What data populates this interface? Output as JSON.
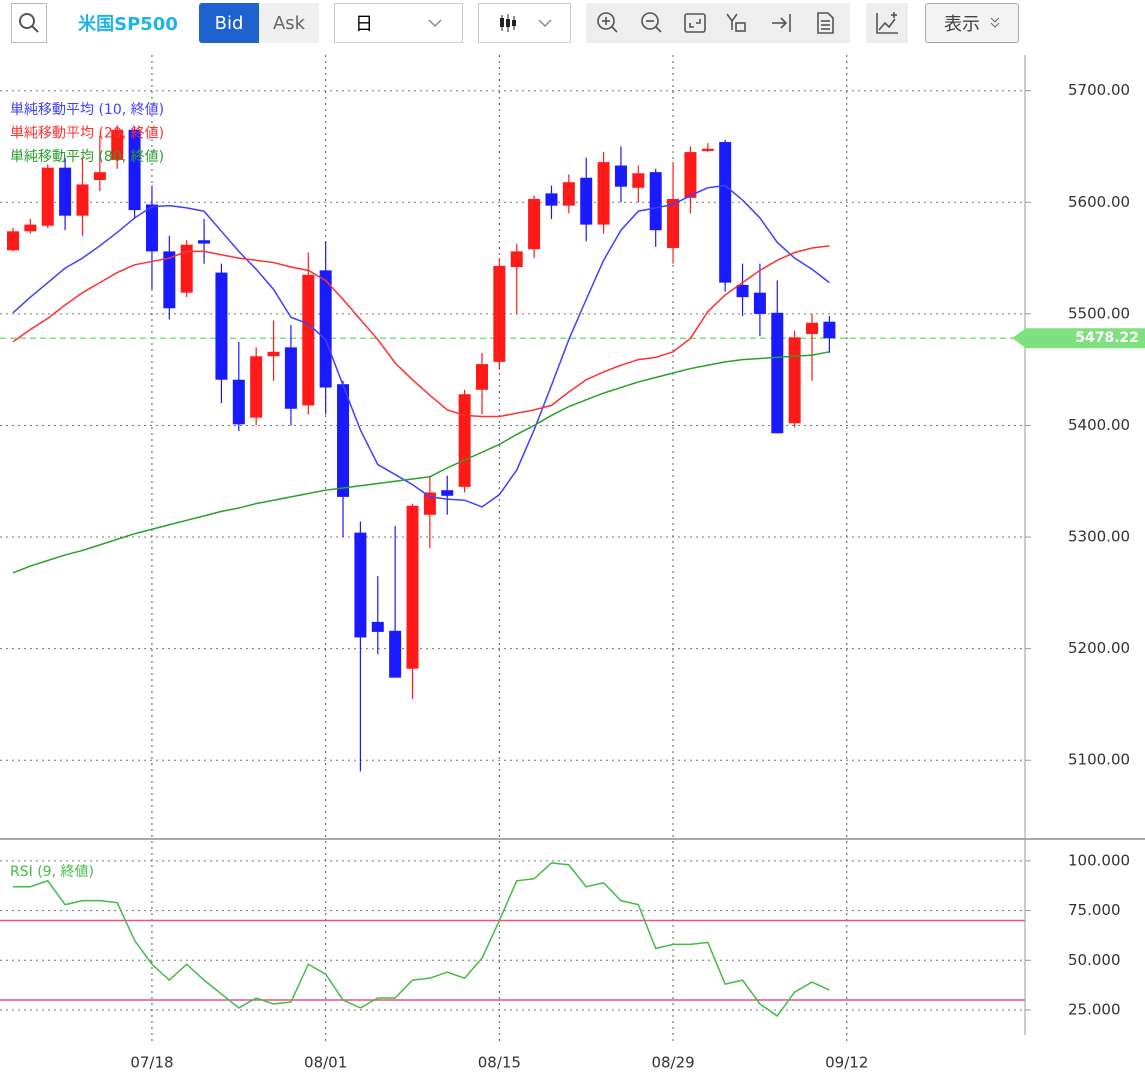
{
  "toolbar": {
    "symbol": "米国SP500",
    "bid": "Bid",
    "ask": "Ask",
    "period": "日",
    "display": "表示"
  },
  "chart_data": [
    {
      "type": "candlestick",
      "categories": [
        null,
        null,
        null,
        null,
        null,
        null,
        null,
        null,
        "07/18",
        null,
        null,
        null,
        null,
        null,
        null,
        null,
        null,
        null,
        "08/01",
        null,
        null,
        null,
        null,
        null,
        null,
        null,
        null,
        null,
        "08/15",
        null,
        null,
        null,
        null,
        null,
        null,
        null,
        null,
        null,
        "08/29",
        null,
        null,
        null,
        null,
        null,
        null,
        null,
        null,
        null,
        "09/12"
      ],
      "open": [
        5557,
        5574,
        5579,
        5631,
        5588,
        5620,
        5638,
        5665,
        5598,
        5556,
        5519,
        5566,
        5537,
        5441,
        5407,
        5462,
        5470,
        5418,
        5539,
        5437,
        5304,
        5224,
        5216,
        5182,
        5320,
        5342,
        5345,
        5432,
        5457,
        5542,
        5558,
        5608,
        5597,
        5622,
        5580,
        5633,
        5613,
        5627,
        5559,
        5604,
        5646,
        5654,
        5526,
        5519,
        5501,
        5402,
        5482,
        5493,
        null
      ],
      "high": [
        5577,
        5585,
        5634,
        5640,
        5640,
        5660,
        5669,
        5668,
        5615,
        5570,
        5566,
        5585,
        5545,
        5475,
        5470,
        5494,
        5490,
        5555,
        5565,
        5440,
        5314,
        5265,
        5310,
        5330,
        5355,
        5355,
        5432,
        5465,
        5550,
        5563,
        5606,
        5615,
        5625,
        5640,
        5645,
        5650,
        5633,
        5630,
        5636,
        5650,
        5653,
        5656,
        5545,
        5545,
        5530,
        5485,
        5500,
        5498,
        null
      ],
      "low": [
        5556,
        5572,
        5577,
        5575,
        5570,
        5610,
        5630,
        5585,
        5522,
        5495,
        5515,
        5545,
        5420,
        5395,
        5400,
        5440,
        5400,
        5410,
        5410,
        5300,
        5090,
        5195,
        5174,
        5155,
        5290,
        5320,
        5340,
        5410,
        5450,
        5500,
        5550,
        5585,
        5590,
        5565,
        5572,
        5600,
        5600,
        5560,
        5545,
        5590,
        5645,
        5520,
        5498,
        5480,
        5393,
        5398,
        5440,
        5465,
        null
      ],
      "close": [
        5574,
        5580,
        5631,
        5588,
        5616,
        5627,
        5665,
        5593,
        5556,
        5505,
        5562,
        5563,
        5441,
        5401,
        5462,
        5466,
        5415,
        5535,
        5434,
        5336,
        5210,
        5215,
        5174,
        5328,
        5340,
        5337,
        5428,
        5455,
        5543,
        5556,
        5603,
        5597,
        5618,
        5580,
        5636,
        5614,
        5626,
        5575,
        5603,
        5645,
        5648,
        5528,
        5515,
        5500,
        5393,
        5479,
        5492,
        5478.22,
        null
      ],
      "up_color": "#ff1a1a",
      "down_color": "#1a1aff",
      "series": [
        {
          "name": "単純移動平均 (10, 終値)",
          "color": "#4040ff",
          "values": [
            5501,
            5515,
            5528,
            5541,
            5550,
            5561,
            5573,
            5586,
            5596,
            5597,
            5595,
            5592,
            5574,
            5556,
            5540,
            5522,
            5497,
            5491,
            5477,
            5436,
            5396,
            5365,
            5356,
            5347,
            5336,
            5334,
            5333,
            5327,
            5338,
            5360,
            5396,
            5436,
            5477,
            5513,
            5548,
            5575,
            5592,
            5595,
            5598,
            5606,
            5613,
            5615,
            5602,
            5586,
            5564,
            5550,
            5540,
            5528,
            null
          ]
        },
        {
          "name": "単純移動平均 (20, 終値)",
          "color": "#ff3030",
          "values": [
            5475,
            5486,
            5496,
            5508,
            5519,
            5528,
            5537,
            5544,
            5547,
            5550,
            5556,
            5556,
            5553,
            5550,
            5548,
            5546,
            5542,
            5539,
            5530,
            5513,
            5495,
            5477,
            5456,
            5441,
            5427,
            5414,
            5409,
            5408,
            5408,
            5411,
            5414,
            5418,
            5430,
            5441,
            5448,
            5454,
            5459,
            5461,
            5466,
            5478,
            5502,
            5517,
            5528,
            5539,
            5548,
            5555,
            5559,
            5561,
            null
          ]
        },
        {
          "name": "単純移動平均 (80, 終値)",
          "color": "#2aa02a",
          "values": [
            5268,
            5274,
            5279,
            5284,
            5288,
            5293,
            5298,
            5303,
            5307,
            5311,
            5315,
            5319,
            5323,
            5326,
            5330,
            5333,
            5336,
            5339,
            5342,
            5344,
            5346,
            5348,
            5350,
            5352,
            5354,
            5362,
            5369,
            5376,
            5383,
            5392,
            5400,
            5409,
            5417,
            5423,
            5429,
            5434,
            5439,
            5443,
            5447,
            5451,
            5454,
            5457,
            5459,
            5460,
            5461,
            5462,
            5463,
            5466,
            null
          ]
        }
      ],
      "last_price": 5478.22,
      "last_price_color": "#7ee07e",
      "ylim": [
        5033,
        5732
      ],
      "yticks": [
        {
          "value": 5100,
          "label": "5100.00"
        },
        {
          "value": 5200,
          "label": "5200.00"
        },
        {
          "value": 5300,
          "label": "5300.00"
        },
        {
          "value": 5400,
          "label": "5400.00"
        },
        {
          "value": 5500,
          "label": "5500.00"
        },
        {
          "value": 5600,
          "label": "5600.00"
        },
        {
          "value": 5700,
          "label": "5700.00"
        }
      ],
      "grid": true
    },
    {
      "type": "line",
      "series": [
        {
          "name": "RSI (9, 終値)",
          "color": "#44bb44",
          "values": [
            87,
            87,
            90,
            78,
            80,
            80,
            79,
            60,
            48,
            40,
            48,
            40,
            33,
            26,
            31,
            28,
            29,
            48,
            43,
            30,
            26,
            31,
            31,
            40,
            41,
            44,
            41,
            51,
            70,
            90,
            91,
            99,
            98,
            87,
            89,
            80,
            78,
            56,
            58,
            58,
            59,
            38,
            40,
            28,
            22,
            34,
            39,
            35,
            null
          ]
        }
      ],
      "reference_lines": [
        {
          "value": 70,
          "color": "#e8508a"
        },
        {
          "value": 30,
          "color": "#e8508a"
        }
      ],
      "ylim": [
        13.4,
        106.5
      ],
      "yticks": [
        {
          "value": 25,
          "label": "25.000"
        },
        {
          "value": 50,
          "label": "50.000"
        },
        {
          "value": 75,
          "label": "75.000"
        },
        {
          "value": 100,
          "label": "100.000"
        }
      ],
      "grid": true
    }
  ]
}
